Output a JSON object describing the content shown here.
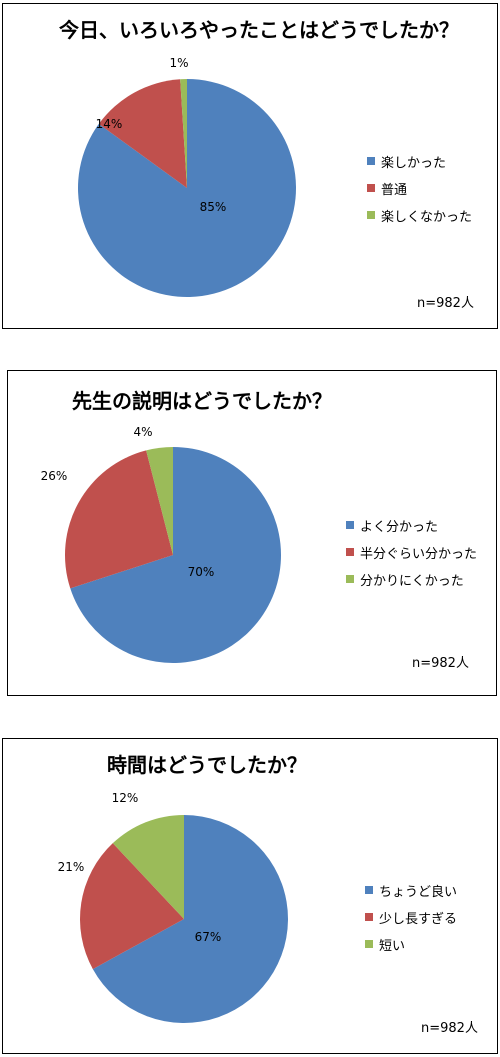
{
  "colors": {
    "series1": "#4f81bd",
    "series2": "#c0504d",
    "series3": "#9bbb59"
  },
  "chart_data": [
    {
      "type": "pie",
      "title": "今日、いろいろやったことはどうでしたか？",
      "categories": [
        "楽しかった",
        "普通",
        "楽しくなかった"
      ],
      "values": [
        85,
        14,
        1
      ],
      "value_labels": [
        "85%",
        "14%",
        "1%"
      ],
      "legend_position": "right",
      "note": "n=982人"
    },
    {
      "type": "pie",
      "title": "先生の説明はどうでしたか？",
      "categories": [
        "よく分かった",
        "半分ぐらい分かった",
        "分かりにくかった"
      ],
      "values": [
        70,
        26,
        4
      ],
      "value_labels": [
        "70%",
        "26%",
        "4%"
      ],
      "legend_position": "right",
      "note": "n=982人"
    },
    {
      "type": "pie",
      "title": "時間はどうでしたか？",
      "categories": [
        "ちょうど良い",
        "少し長すぎる",
        "短い"
      ],
      "values": [
        67,
        21,
        12
      ],
      "value_labels": [
        "67%",
        "21%",
        "12%"
      ],
      "legend_position": "right",
      "note": "n=982人"
    }
  ]
}
